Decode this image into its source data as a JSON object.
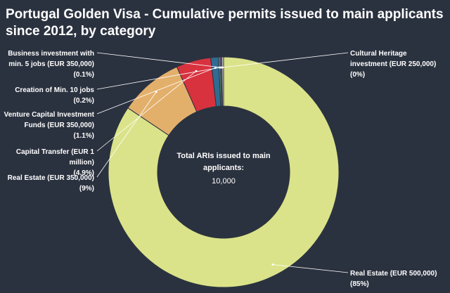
{
  "chart_data": {
    "type": "donut",
    "title_lines": [
      "Portugal Golden Visa - Cumulative permits issued to main applicants",
      "since 2012, by category"
    ],
    "center_label": [
      "Total ARIs issued to main",
      "applicants:"
    ],
    "center_value": "10,000",
    "slices": [
      {
        "lines": [
          "Real Estate (EUR 500,000)"
        ],
        "pct_label": "(85%)",
        "value": 85,
        "color": "#dbe38a"
      },
      {
        "lines": [
          "Real Estate (EUR 350,000)"
        ],
        "pct_label": "(9%)",
        "value": 9,
        "color": "#e3b06c"
      },
      {
        "lines": [
          "Capital Transfer (EUR 1",
          "million)"
        ],
        "pct_label": "(4.9%)",
        "value": 4.9,
        "color": "#d8323f"
      },
      {
        "lines": [
          "Venture Capital Investment",
          "Funds (EUR 350,000)"
        ],
        "pct_label": "(1.1%)",
        "value": 1.1,
        "color": "#2f6b92"
      },
      {
        "lines": [
          "Creation of Min. 10 jobs"
        ],
        "pct_label": "(0.2%)",
        "value": 0.2,
        "color": "#5ab06e"
      },
      {
        "lines": [
          "Business investment with",
          "min. 5 jobs (EUR 350,000)"
        ],
        "pct_label": "(0.1%)",
        "value": 0.1,
        "color": "#8e5aa8"
      },
      {
        "lines": [
          "Cultural Heritage",
          "investment (EUR 250,000)"
        ],
        "pct_label": "(0%)",
        "value": 0,
        "color": "#cccccc"
      }
    ]
  }
}
